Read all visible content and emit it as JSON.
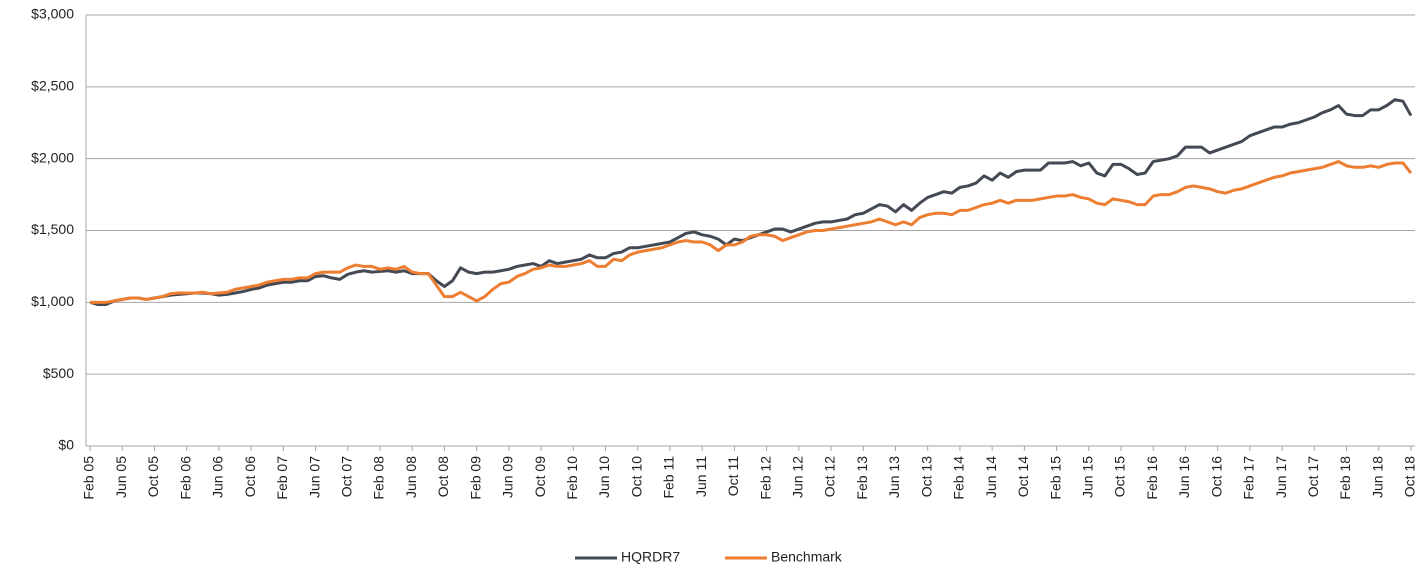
{
  "chart_data": {
    "type": "line",
    "categories": [
      "Feb 05",
      null,
      null,
      null,
      "Jun 05",
      null,
      null,
      null,
      "Oct 05",
      null,
      null,
      null,
      "Feb 06",
      null,
      null,
      null,
      "Jun 06",
      null,
      null,
      null,
      "Oct 06",
      null,
      null,
      null,
      "Feb 07",
      null,
      null,
      null,
      "Jun 07",
      null,
      null,
      null,
      "Oct 07",
      null,
      null,
      null,
      "Feb 08",
      null,
      null,
      null,
      "Jun 08",
      null,
      null,
      null,
      "Oct 08",
      null,
      null,
      null,
      "Feb 09",
      null,
      null,
      null,
      "Jun 09",
      null,
      null,
      null,
      "Oct 09",
      null,
      null,
      null,
      "Feb 10",
      null,
      null,
      null,
      "Jun 10",
      null,
      null,
      null,
      "Oct 10",
      null,
      null,
      null,
      "Feb 11",
      null,
      null,
      null,
      "Jun 11",
      null,
      null,
      null,
      "Oct 11",
      null,
      null,
      null,
      "Feb 12",
      null,
      null,
      null,
      "Jun 12",
      null,
      null,
      null,
      "Oct 12",
      null,
      null,
      null,
      "Feb 13",
      null,
      null,
      null,
      "Jun 13",
      null,
      null,
      null,
      "Oct 13",
      null,
      null,
      null,
      "Feb 14",
      null,
      null,
      null,
      "Jun 14",
      null,
      null,
      null,
      "Oct 14",
      null,
      null,
      null,
      "Feb 15",
      null,
      null,
      null,
      "Jun 15",
      null,
      null,
      null,
      "Oct 15",
      null,
      null,
      null,
      "Feb 16",
      null,
      null,
      null,
      "Jun 16",
      null,
      null,
      null,
      "Oct 16",
      null,
      null,
      null,
      "Feb 17",
      null,
      null,
      null,
      "Jun 17",
      null,
      null,
      null,
      "Oct 17",
      null,
      null,
      null,
      "Feb 18",
      null,
      null,
      null,
      "Jun 18",
      null,
      null,
      null,
      "Oct 18"
    ],
    "series": [
      {
        "name": "HQRDR7",
        "color": "#434a54",
        "values": [
          1000,
          985,
          985,
          1010,
          1020,
          1030,
          1030,
          1020,
          1030,
          1040,
          1050,
          1055,
          1060,
          1065,
          1065,
          1060,
          1050,
          1055,
          1065,
          1075,
          1090,
          1100,
          1120,
          1130,
          1140,
          1140,
          1150,
          1150,
          1180,
          1185,
          1170,
          1160,
          1195,
          1210,
          1220,
          1210,
          1215,
          1220,
          1210,
          1220,
          1200,
          1200,
          1200,
          1150,
          1110,
          1150,
          1240,
          1210,
          1200,
          1210,
          1210,
          1220,
          1230,
          1250,
          1260,
          1270,
          1250,
          1290,
          1270,
          1280,
          1290,
          1300,
          1330,
          1310,
          1310,
          1340,
          1350,
          1380,
          1380,
          1390,
          1400,
          1410,
          1420,
          1450,
          1480,
          1490,
          1470,
          1460,
          1440,
          1400,
          1440,
          1430,
          1450,
          1470,
          1490,
          1510,
          1510,
          1490,
          1510,
          1530,
          1550,
          1560,
          1560,
          1570,
          1580,
          1610,
          1620,
          1650,
          1680,
          1670,
          1630,
          1680,
          1640,
          1690,
          1730,
          1750,
          1770,
          1760,
          1800,
          1810,
          1830,
          1880,
          1850,
          1900,
          1870,
          1910,
          1920,
          1920,
          1920,
          1970,
          1970,
          1970,
          1980,
          1950,
          1970,
          1900,
          1880,
          1960,
          1960,
          1930,
          1890,
          1900,
          1980,
          1990,
          2000,
          2020,
          2080,
          2080,
          2080,
          2040,
          2060,
          2080,
          2100,
          2120,
          2160,
          2180,
          2200,
          2220,
          2220,
          2240,
          2250,
          2270,
          2290,
          2320,
          2340,
          2370,
          2310,
          2300,
          2300,
          2340,
          2340,
          2370,
          2410,
          2400,
          2300
        ]
      },
      {
        "name": "Benchmark",
        "color": "#ed7d31",
        "values": [
          1000,
          1000,
          1000,
          1010,
          1020,
          1030,
          1030,
          1020,
          1030,
          1040,
          1060,
          1065,
          1065,
          1065,
          1070,
          1060,
          1065,
          1070,
          1090,
          1100,
          1110,
          1120,
          1140,
          1150,
          1160,
          1160,
          1170,
          1170,
          1200,
          1210,
          1210,
          1210,
          1240,
          1260,
          1250,
          1250,
          1230,
          1240,
          1230,
          1250,
          1210,
          1200,
          1200,
          1120,
          1040,
          1040,
          1070,
          1040,
          1010,
          1040,
          1090,
          1130,
          1140,
          1180,
          1200,
          1230,
          1240,
          1260,
          1250,
          1250,
          1260,
          1270,
          1290,
          1250,
          1250,
          1300,
          1290,
          1330,
          1350,
          1360,
          1370,
          1380,
          1400,
          1420,
          1430,
          1420,
          1420,
          1400,
          1360,
          1400,
          1400,
          1420,
          1460,
          1470,
          1470,
          1460,
          1430,
          1450,
          1470,
          1490,
          1500,
          1500,
          1510,
          1520,
          1530,
          1540,
          1550,
          1560,
          1580,
          1560,
          1540,
          1560,
          1540,
          1590,
          1610,
          1620,
          1620,
          1610,
          1640,
          1640,
          1660,
          1680,
          1690,
          1710,
          1690,
          1710,
          1710,
          1710,
          1720,
          1730,
          1740,
          1740,
          1750,
          1730,
          1720,
          1690,
          1680,
          1720,
          1710,
          1700,
          1680,
          1680,
          1740,
          1750,
          1750,
          1770,
          1800,
          1810,
          1800,
          1790,
          1770,
          1760,
          1780,
          1790,
          1810,
          1830,
          1850,
          1870,
          1880,
          1900,
          1910,
          1920,
          1930,
          1940,
          1960,
          1980,
          1950,
          1940,
          1940,
          1950,
          1940,
          1960,
          1970,
          1970,
          1900
        ]
      }
    ],
    "ylim": [
      0,
      3000
    ],
    "yticks": [
      {
        "value": 0,
        "label": "$0"
      },
      {
        "value": 500,
        "label": "$500"
      },
      {
        "value": 1000,
        "label": "$1,000"
      },
      {
        "value": 1500,
        "label": "$1,500"
      },
      {
        "value": 2000,
        "label": "$2,000"
      },
      {
        "value": 2500,
        "label": "$2,500"
      },
      {
        "value": 3000,
        "label": "$3,000"
      }
    ],
    "grid": true,
    "legend": "bottom"
  }
}
